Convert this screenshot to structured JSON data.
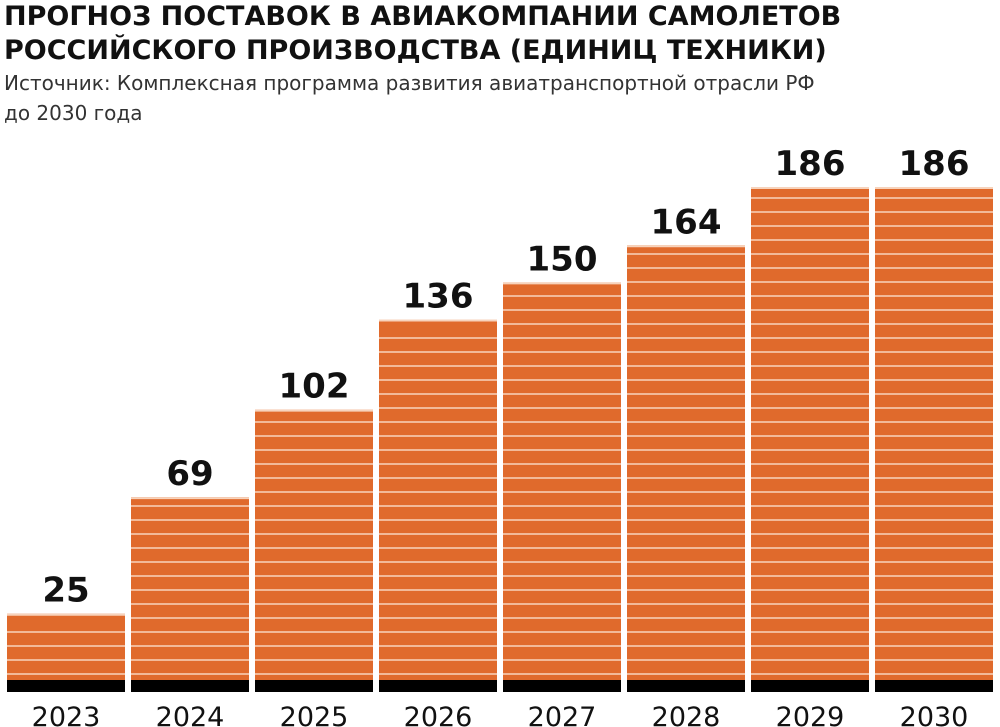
{
  "colors": {
    "bar": "#e06a2c",
    "stripe": "#f7d3bc",
    "baseline": "#000000",
    "text": "#111111"
  },
  "chart_data": {
    "type": "bar",
    "title": "ПРОГНОЗ ПОСТАВОК В АВИАКОМПАНИИ САМОЛЕТОВ РОССИЙСКОГО ПРОИЗВОДСТВА (ЕДИНИЦ ТЕХНИКИ)",
    "subtitle": "Источник: Комплексная программа развития авиатранспортной отрасли РФ до 2030 года",
    "categories": [
      "2023",
      "2024",
      "2025",
      "2026",
      "2027",
      "2028",
      "2029",
      "2030"
    ],
    "values": [
      25,
      69,
      102,
      136,
      150,
      164,
      186,
      186
    ],
    "data_labels": [
      "25",
      "69",
      "102",
      "136",
      "150",
      "164",
      "186",
      "186"
    ],
    "xlabel": "",
    "ylabel": "",
    "ylim": [
      0,
      186
    ],
    "grid": false,
    "legend": "none"
  }
}
